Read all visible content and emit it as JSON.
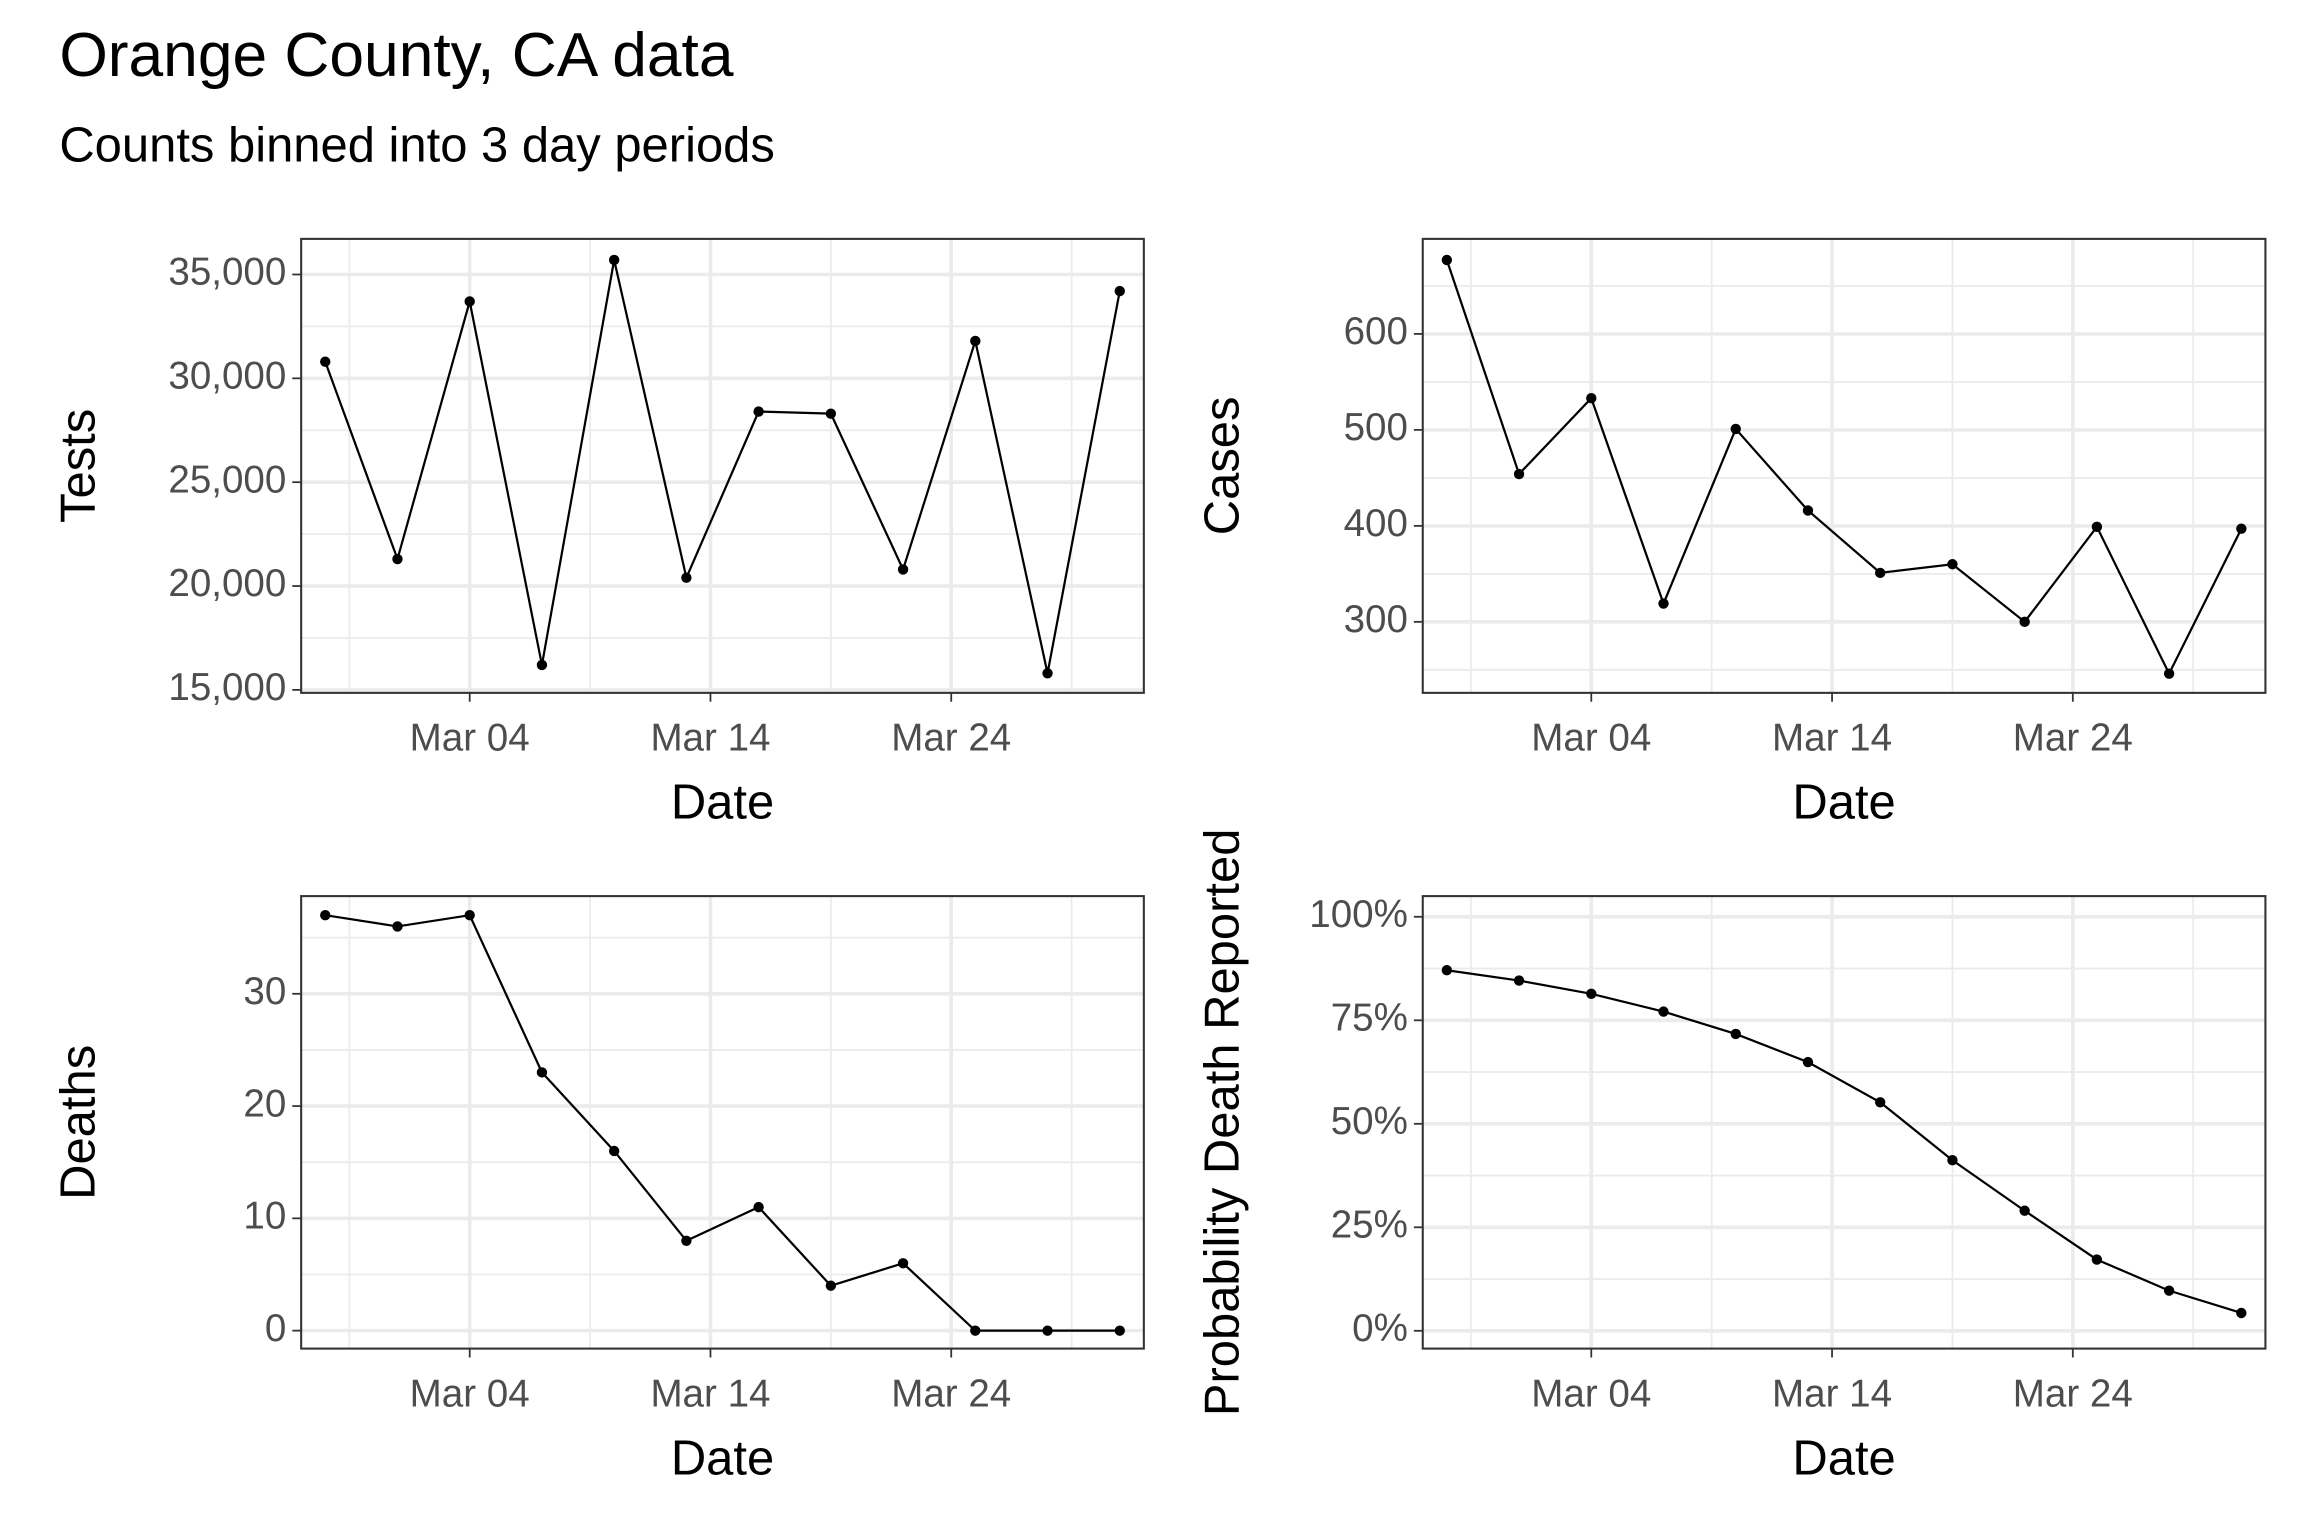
{
  "title": "Orange County, CA data",
  "subtitle": "Counts binned into 3 day periods",
  "chart_data": [
    {
      "type": "line",
      "xlabel": "Date",
      "ylabel": "Tests",
      "color": "#000000",
      "grid": true,
      "x": [
        "02-27",
        "03-01",
        "03-04",
        "03-07",
        "03-10",
        "03-13",
        "03-16",
        "03-19",
        "03-22",
        "03-25",
        "03-28",
        "03-31"
      ],
      "values": [
        30800,
        21300,
        33700,
        16200,
        35700,
        20400,
        28400,
        28300,
        20800,
        31800,
        15800,
        34200
      ],
      "xlim": [
        "02-26",
        "04-01"
      ],
      "xticks": [
        {
          "value": "03-04",
          "label": "Mar 04"
        },
        {
          "value": "03-14",
          "label": "Mar 14"
        },
        {
          "value": "03-24",
          "label": "Mar 24"
        }
      ],
      "ylim": [
        14857,
        36714
      ],
      "yticks": [
        {
          "value": 15000,
          "label": "15,000"
        },
        {
          "value": 20000,
          "label": "20,000"
        },
        {
          "value": 25000,
          "label": "25,000"
        },
        {
          "value": 30000,
          "label": "30,000"
        },
        {
          "value": 35000,
          "label": "35,000"
        }
      ]
    },
    {
      "type": "line",
      "xlabel": "Date",
      "ylabel": "Cases",
      "color": "#000000",
      "grid": true,
      "x": [
        "02-27",
        "03-01",
        "03-04",
        "03-07",
        "03-10",
        "03-13",
        "03-16",
        "03-19",
        "03-22",
        "03-25",
        "03-28",
        "03-31"
      ],
      "values": [
        677,
        454,
        533,
        319,
        501,
        416,
        351,
        360,
        300,
        399,
        246,
        397
      ],
      "xlim": [
        "02-26",
        "04-01"
      ],
      "xticks": [
        {
          "value": "03-04",
          "label": "Mar 04"
        },
        {
          "value": "03-14",
          "label": "Mar 14"
        },
        {
          "value": "03-24",
          "label": "Mar 24"
        }
      ],
      "ylim": [
        226,
        699
      ],
      "yticks": [
        300,
        400,
        500,
        600
      ]
    },
    {
      "type": "line",
      "xlabel": "Date",
      "ylabel": "Deaths",
      "color": "#000000",
      "grid": true,
      "x": [
        "02-27",
        "03-01",
        "03-04",
        "03-07",
        "03-10",
        "03-13",
        "03-16",
        "03-19",
        "03-22",
        "03-25",
        "03-28",
        "03-31"
      ],
      "values": [
        37,
        36,
        37,
        23,
        16,
        8,
        11,
        4,
        6,
        0,
        0,
        0
      ],
      "xlim": [
        "02-26",
        "04-01"
      ],
      "xticks": [
        {
          "value": "03-04",
          "label": "Mar 04"
        },
        {
          "value": "03-14",
          "label": "Mar 14"
        },
        {
          "value": "03-24",
          "label": "Mar 24"
        }
      ],
      "ylim": [
        -1.6,
        38.7
      ],
      "yticks": [
        0,
        10,
        20,
        30
      ]
    },
    {
      "type": "line",
      "xlabel": "Date",
      "ylabel": "Probability Death Reported",
      "color": "#000000",
      "grid": true,
      "x": [
        "02-27",
        "03-01",
        "03-04",
        "03-07",
        "03-10",
        "03-13",
        "03-16",
        "03-19",
        "03-22",
        "03-25",
        "03-28",
        "03-31"
      ],
      "values": [
        87.1,
        84.6,
        81.4,
        77.1,
        71.7,
        64.9,
        55.2,
        41.2,
        29.0,
        17.2,
        9.7,
        4.3
      ],
      "xlim": [
        "02-26",
        "04-01"
      ],
      "xticks": [
        {
          "value": "03-04",
          "label": "Mar 04"
        },
        {
          "value": "03-14",
          "label": "Mar 14"
        },
        {
          "value": "03-24",
          "label": "Mar 24"
        }
      ],
      "ylim": [
        -4.3,
        105
      ],
      "yticks": [
        {
          "value": 0,
          "label": "0%"
        },
        {
          "value": 25,
          "label": "25%"
        },
        {
          "value": 50,
          "label": "50%"
        },
        {
          "value": 75,
          "label": "75%"
        },
        {
          "value": 100,
          "label": "100%"
        }
      ]
    }
  ]
}
